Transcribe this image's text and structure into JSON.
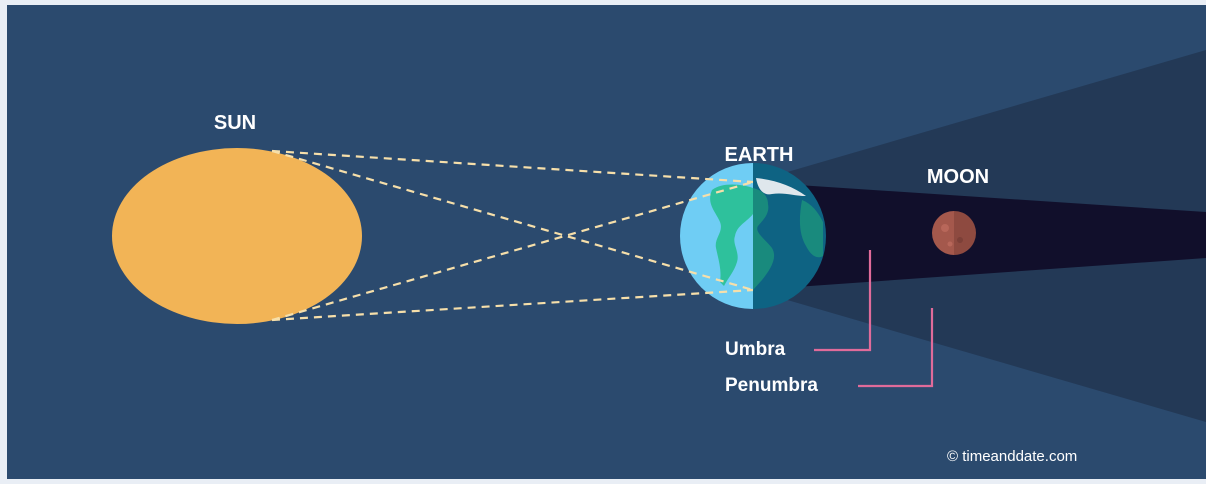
{
  "diagram": {
    "labels": {
      "sun": "SUN",
      "earth": "EARTH",
      "moon": "MOON",
      "umbra": "Umbra",
      "penumbra": "Penumbra"
    },
    "credit": "© timeanddate.com"
  },
  "colors": {
    "background": "#2b4a6e",
    "frame": "#e9eef5",
    "sun": "#f2b456",
    "penumbra_shadow": "#233956",
    "umbra_shadow": "#110f2b",
    "ray_lines": "#f6dfaa",
    "earth_ocean_lit": "#6fcdf4",
    "earth_land_lit": "#2ec19c",
    "earth_ocean_dark": "#0e6383",
    "earth_land_dark": "#198a7d",
    "earth_ice": "#dfe7ec",
    "moon": "#a4584c",
    "leader_lines": "#e06b9a",
    "text": "#ffffff"
  }
}
